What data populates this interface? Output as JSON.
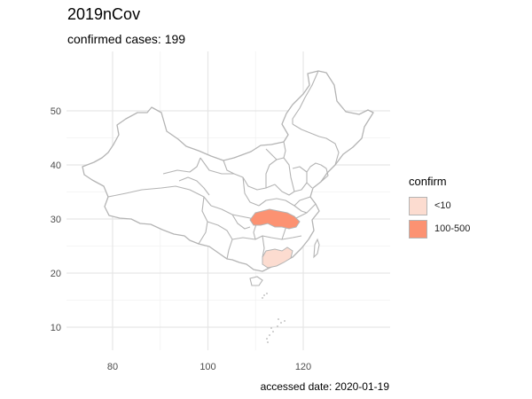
{
  "title": "2019nCov",
  "subtitle": "confirmed cases: 199",
  "caption": "accessed date: 2020-01-19",
  "legend": {
    "title": "confirm",
    "items": [
      {
        "label": "<10",
        "color": "#FCDCD0"
      },
      {
        "label": "100-500",
        "color": "#FC9272"
      }
    ]
  },
  "chart_data": {
    "type": "map",
    "region": "China",
    "x_ticks": [
      80,
      100,
      120
    ],
    "y_ticks": [
      10,
      20,
      30,
      40,
      50
    ],
    "grid": true,
    "legend_position": "right",
    "border_color": "#b4b4b4",
    "highlighted": [
      {
        "class": "100-500",
        "color": "#FC9272"
      },
      {
        "class": "<10",
        "color": "#FCDCD0"
      }
    ]
  }
}
